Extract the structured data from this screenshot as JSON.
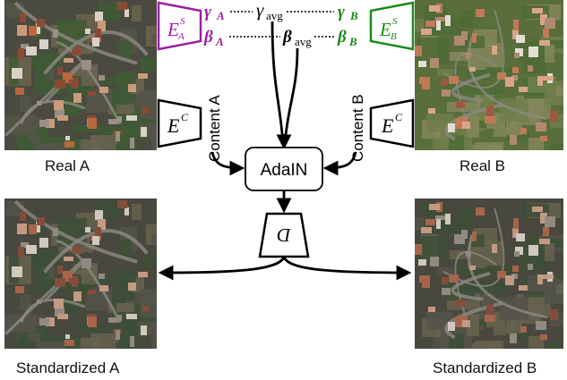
{
  "images": {
    "real_a": {
      "caption": "Real A"
    },
    "real_b": {
      "caption": "Real B"
    },
    "std_a": {
      "caption": "Standardized A"
    },
    "std_b": {
      "caption": "Standardized B"
    }
  },
  "encoders": {
    "style_a": {
      "base": "E",
      "sup": "S",
      "sub": "A",
      "color": "#9b1fa3"
    },
    "style_b": {
      "base": "E",
      "sup": "S",
      "sub": "B",
      "color": "#1a8a1a"
    },
    "content_left": {
      "base": "E",
      "sup": "C"
    },
    "content_right": {
      "base": "E",
      "sup": "C"
    }
  },
  "params": {
    "gamma_a": {
      "sym": "γ",
      "sub": "A",
      "color": "#9b1fa3"
    },
    "beta_a": {
      "sym": "β",
      "sub": "A",
      "color": "#9b1fa3"
    },
    "gamma_b": {
      "sym": "γ",
      "sub": "B",
      "color": "#1a8a1a"
    },
    "beta_b": {
      "sym": "β",
      "sub": "B",
      "color": "#1a8a1a"
    },
    "gamma_avg": {
      "sym": "γ",
      "sub": "avg"
    },
    "beta_avg": {
      "sym": "β",
      "sub": "avg"
    }
  },
  "content_labels": {
    "a": "Content A",
    "b": "Content B"
  },
  "adain": {
    "label": "AdaIN"
  },
  "decoder": {
    "label": "D"
  }
}
